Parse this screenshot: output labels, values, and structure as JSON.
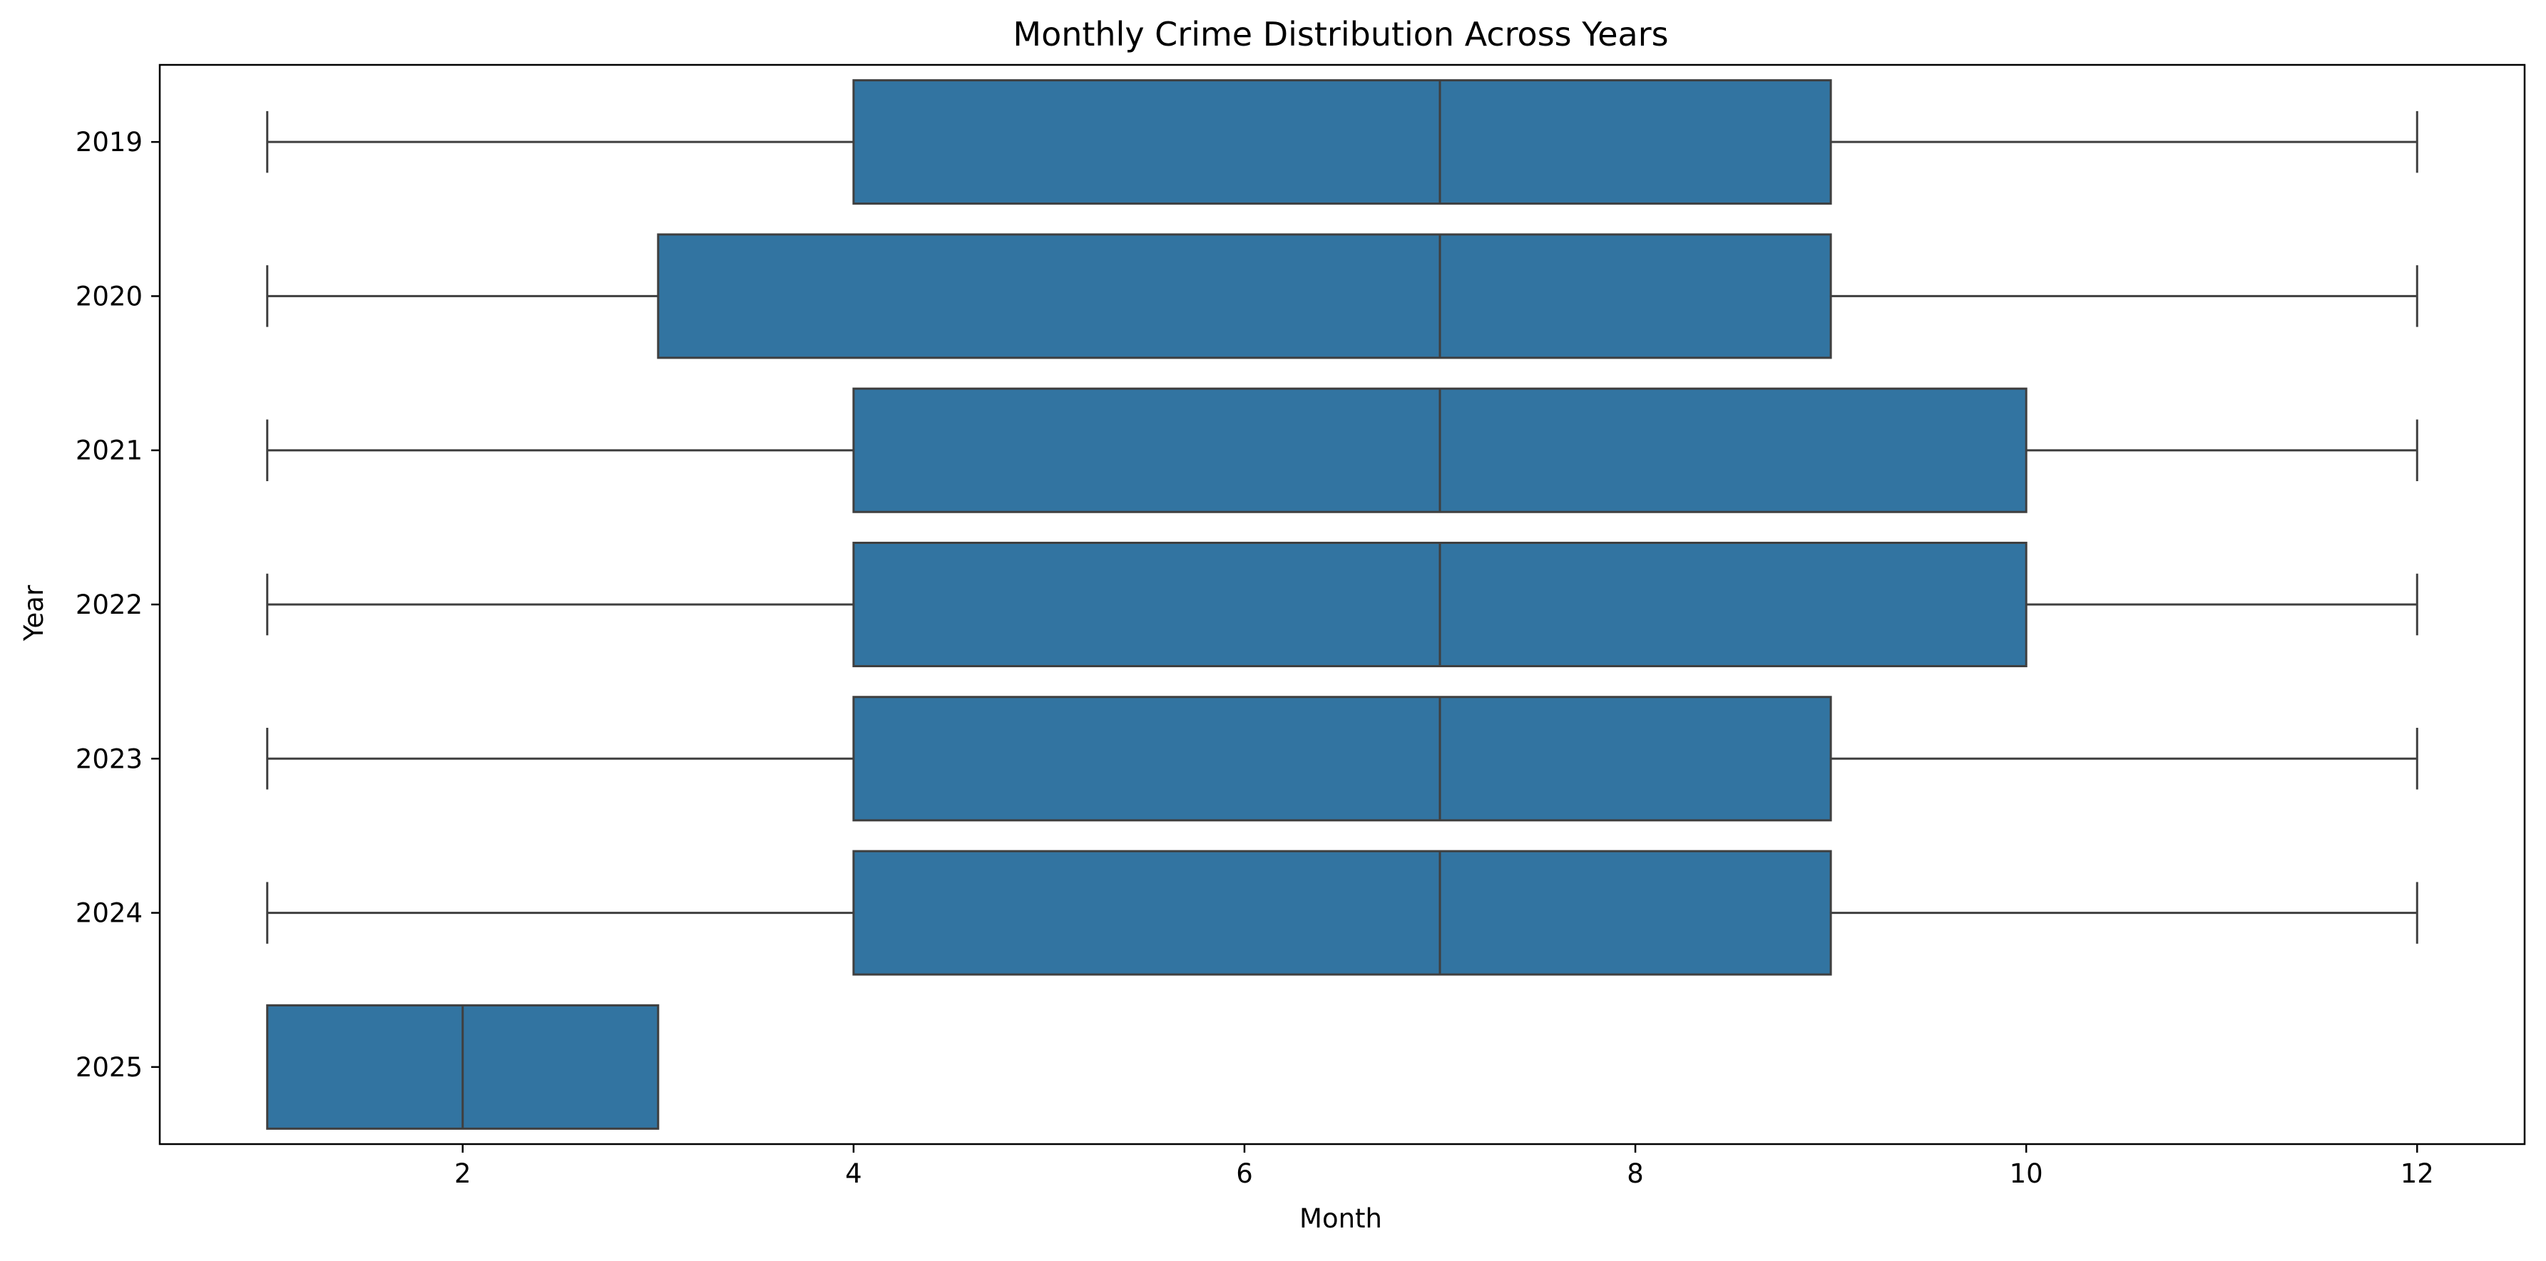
{
  "chart_data": {
    "type": "boxplot",
    "orientation": "horizontal",
    "title": "Monthly Crime Distribution Across Years",
    "xlabel": "Month",
    "ylabel": "Year",
    "xlim": [
      0.45,
      12.55
    ],
    "xticks": [
      2,
      4,
      6,
      8,
      10,
      12
    ],
    "grid": false,
    "colors": {
      "box_fill": "#3274a1",
      "line": "#3f3f3f",
      "axes": "#000000",
      "background": "#ffffff"
    },
    "categories": [
      "2019",
      "2020",
      "2021",
      "2022",
      "2023",
      "2024",
      "2025"
    ],
    "boxes": [
      {
        "label": "2019",
        "whisker_low": 1,
        "q1": 4,
        "median": 7,
        "q3": 9,
        "whisker_high": 12
      },
      {
        "label": "2020",
        "whisker_low": 1,
        "q1": 3,
        "median": 7,
        "q3": 9,
        "whisker_high": 12
      },
      {
        "label": "2021",
        "whisker_low": 1,
        "q1": 4,
        "median": 7,
        "q3": 10,
        "whisker_high": 12
      },
      {
        "label": "2022",
        "whisker_low": 1,
        "q1": 4,
        "median": 7,
        "q3": 10,
        "whisker_high": 12
      },
      {
        "label": "2023",
        "whisker_low": 1,
        "q1": 4,
        "median": 7,
        "q3": 9,
        "whisker_high": 12
      },
      {
        "label": "2024",
        "whisker_low": 1,
        "q1": 4,
        "median": 7,
        "q3": 9,
        "whisker_high": 12
      },
      {
        "label": "2025",
        "whisker_low": 1,
        "q1": 1,
        "median": 2,
        "q3": 3,
        "whisker_high": 3
      }
    ]
  }
}
